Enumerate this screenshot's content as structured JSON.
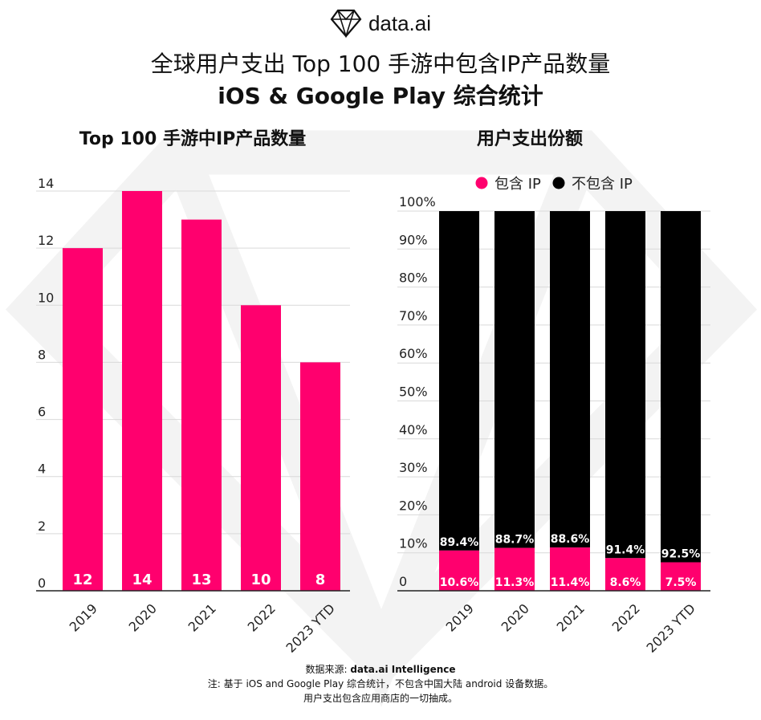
{
  "brand": {
    "logo_text": "data.ai"
  },
  "title": {
    "line1": "全球用户支出 Top 100 手游中包含IP产品数量",
    "line2": "iOS & Google Play 综合统计"
  },
  "colors": {
    "pink": "#FF006E",
    "black": "#000000",
    "grid": "#d9d9d9",
    "watermark": "#f1f1f1"
  },
  "chart_data": [
    {
      "type": "bar",
      "title": "Top 100 手游中IP产品数量",
      "categories": [
        "2019",
        "2020",
        "2021",
        "2022",
        "2023 YTD"
      ],
      "values": [
        12,
        14,
        13,
        10,
        8
      ],
      "data_labels": [
        "12",
        "14",
        "13",
        "10",
        "8"
      ],
      "yticks": [
        "0",
        "2",
        "4",
        "6",
        "8",
        "10",
        "12",
        "14"
      ],
      "ylim": [
        0,
        14
      ],
      "grid": true
    },
    {
      "type": "bar",
      "stacked": true,
      "title": "用户支出份额",
      "categories": [
        "2019",
        "2020",
        "2021",
        "2022",
        "2023 YTD"
      ],
      "series": [
        {
          "name": "包含 IP",
          "values": [
            10.6,
            11.3,
            11.4,
            8.6,
            7.5
          ],
          "labels": [
            "10.6%",
            "11.3%",
            "11.4%",
            "8.6%",
            "7.5%"
          ]
        },
        {
          "name": "不包含 IP",
          "values": [
            89.4,
            88.7,
            88.6,
            91.4,
            92.5
          ],
          "labels": [
            "89.4%",
            "88.7%",
            "88.6%",
            "91.4%",
            "92.5%"
          ]
        }
      ],
      "yticks": [
        "0",
        "10%",
        "20%",
        "30%",
        "40%",
        "50%",
        "60%",
        "70%",
        "80%",
        "90%",
        "100%"
      ],
      "ylim": [
        0,
        100
      ],
      "legend_position": "top",
      "grid": true
    }
  ],
  "footer": {
    "source_prefix": "数据来源: ",
    "source_name": "data.ai Intelligence",
    "note1": "注: 基于 iOS and Google Play 综合统计，不包含中国大陆 android 设备数据。",
    "note2": "用户支出包含应用商店的一切抽成。"
  }
}
